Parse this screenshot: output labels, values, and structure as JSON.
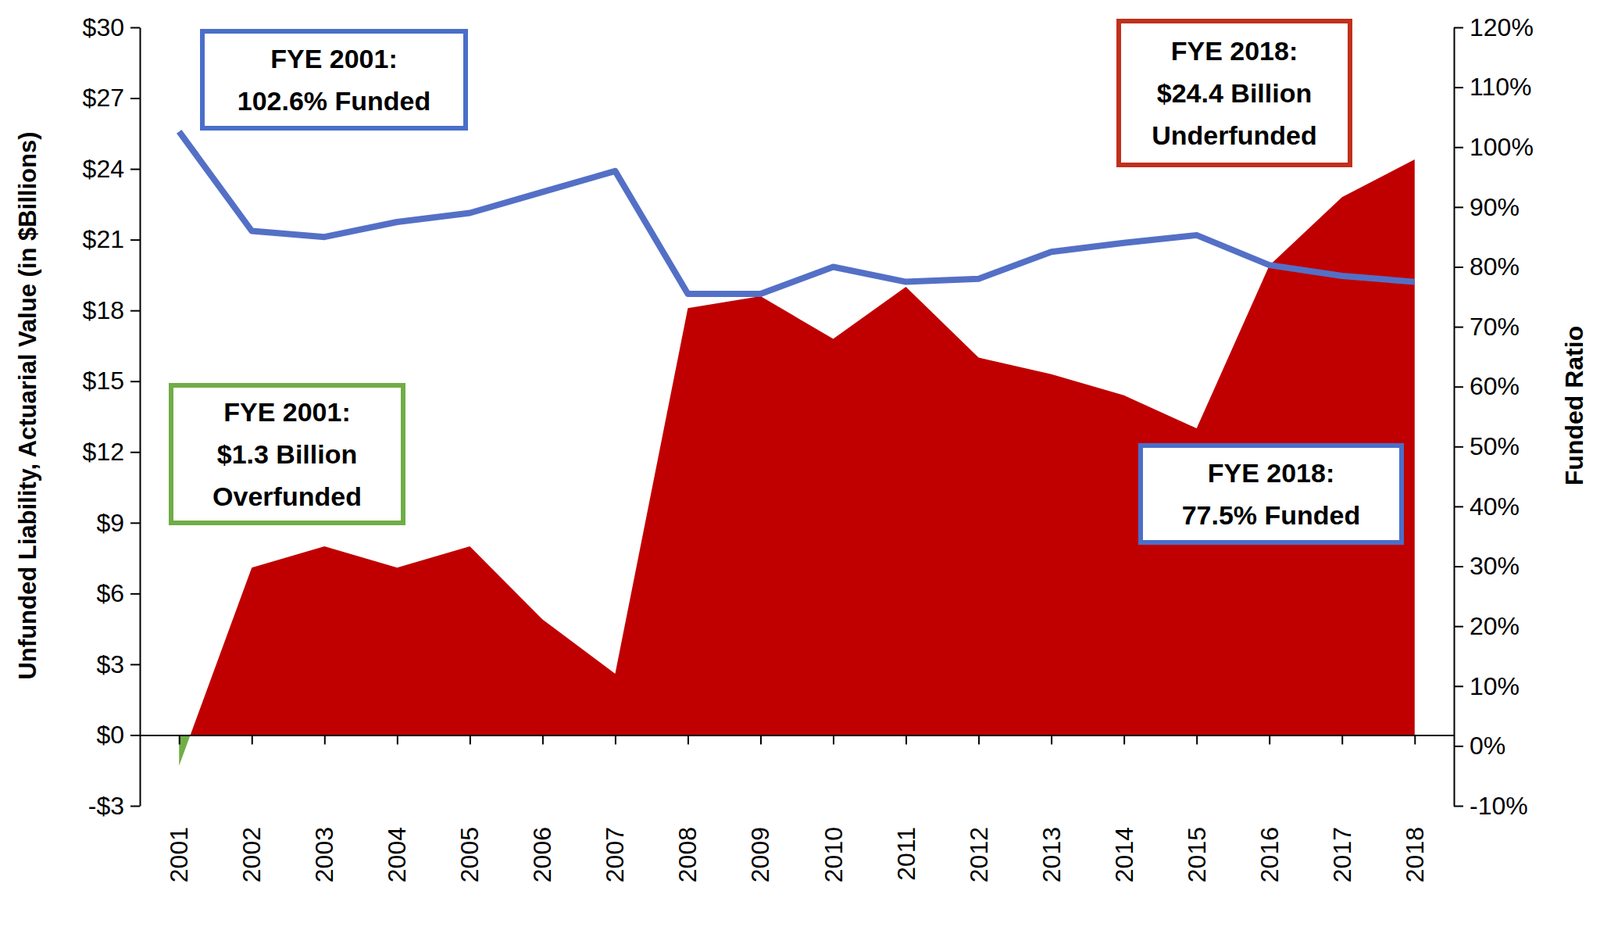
{
  "chart_data": {
    "type": "area",
    "y_label": "Unfunded Liability, Actuarial Value (in $Billions)",
    "y2_label": "Funded Ratio",
    "categories": [
      "2001",
      "2002",
      "2003",
      "2004",
      "2005",
      "2006",
      "2007",
      "2008",
      "2009",
      "2010",
      "2011",
      "2012",
      "2013",
      "2014",
      "2015",
      "2016",
      "2017",
      "2018"
    ],
    "series": [
      {
        "type": "area",
        "color": "#c00000",
        "values": [
          -1.3,
          7.1,
          8.0,
          7.1,
          8.0,
          4.9,
          2.6,
          18.1,
          18.6,
          16.8,
          19.0,
          16.0,
          15.3,
          14.4,
          13.0,
          19.9,
          22.8,
          24.4
        ]
      },
      {
        "type": "line",
        "color": "#5470c6",
        "axis": "y2",
        "values": [
          102.6,
          86.0,
          85.0,
          87.5,
          89.0,
          92.5,
          96.0,
          75.5,
          75.5,
          80.0,
          77.5,
          78.0,
          82.5,
          84.0,
          85.3,
          80.3,
          78.5,
          77.5
        ]
      }
    ],
    "ylim": [
      -3,
      30
    ],
    "yticks": [
      {
        "value": -3,
        "label": "-$3"
      },
      {
        "value": 0,
        "label": "$0"
      },
      {
        "value": 3,
        "label": "$3"
      },
      {
        "value": 6,
        "label": "$6"
      },
      {
        "value": 9,
        "label": "$9"
      },
      {
        "value": 12,
        "label": "$12"
      },
      {
        "value": 15,
        "label": "$15"
      },
      {
        "value": 18,
        "label": "$18"
      },
      {
        "value": 21,
        "label": "$21"
      },
      {
        "value": 24,
        "label": "$24"
      },
      {
        "value": 27,
        "label": "$27"
      },
      {
        "value": 30,
        "label": "$30"
      }
    ],
    "y2lim": [
      -10,
      120
    ],
    "y2ticks": [
      {
        "value": -10,
        "label": "-10%"
      },
      {
        "value": 0,
        "label": "0%"
      },
      {
        "value": 10,
        "label": "10%"
      },
      {
        "value": 20,
        "label": "20%"
      },
      {
        "value": 30,
        "label": "30%"
      },
      {
        "value": 40,
        "label": "40%"
      },
      {
        "value": 50,
        "label": "50%"
      },
      {
        "value": 60,
        "label": "60%"
      },
      {
        "value": 70,
        "label": "70%"
      },
      {
        "value": 80,
        "label": "80%"
      },
      {
        "value": 90,
        "label": "90%"
      },
      {
        "value": 100,
        "label": "100%"
      },
      {
        "value": 110,
        "label": "110%"
      },
      {
        "value": 120,
        "label": "120%"
      }
    ],
    "grid": false,
    "annotations": [
      {
        "lines": [
          "FYE 2001:",
          "102.6% Funded"
        ],
        "color": "#4a6fc9"
      },
      {
        "lines": [
          "FYE 2001:",
          "$1.3 Billion",
          "Overfunded"
        ],
        "color": "#70ad47"
      },
      {
        "lines": [
          "FYE 2018:",
          "$24.4 Billion",
          "Underfunded"
        ],
        "color": "#c0301c"
      },
      {
        "lines": [
          "FYE 2018:",
          "77.5% Funded"
        ],
        "color": "#4a6fc9"
      }
    ]
  }
}
